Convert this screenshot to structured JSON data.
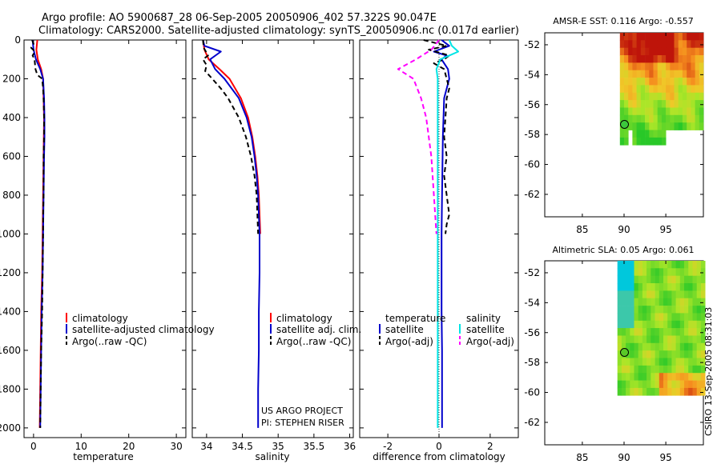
{
  "figure": {
    "title_line1": "Argo profile: AO 5900687_28 06-Sep-2005 20050906_402 57.322S 90.047E",
    "title_line2": "Climatology: CARS2000. Satellite-adjusted climatology: synTS_20050906.nc (0.017d earlier)",
    "credit": "CSIRO 13-Sep-2005 08:31:03",
    "project_line1": "US ARGO PROJECT",
    "project_line2": "PI: STEPHEN RISER"
  },
  "colors": {
    "climatology": "#ff0000",
    "satellite": "#0000cc",
    "argo": "#000000",
    "salinity_satellite": "#00e5e5",
    "salinity_argo": "#ff00ff"
  },
  "chart_data": [
    {
      "id": "temperature",
      "type": "line",
      "xlabel": "temperature",
      "xlim": [
        -2,
        32
      ],
      "ylim": [
        2050,
        0
      ],
      "xticks": [
        0,
        10,
        20,
        30
      ],
      "yticks": [
        0,
        200,
        400,
        600,
        800,
        1000,
        1200,
        1400,
        1600,
        1800,
        2000
      ],
      "legend": [
        "climatology",
        "satellite-adjusted climatology",
        "Argo(..raw -QC)"
      ],
      "series": [
        {
          "name": "climatology",
          "depth": [
            0,
            50,
            100,
            150,
            200,
            300,
            400,
            600,
            800,
            1000,
            1200,
            1400,
            1600,
            1800,
            2000
          ],
          "values": [
            0.8,
            0.6,
            0.9,
            1.6,
            2.0,
            2.1,
            2.2,
            2.1,
            2.0,
            1.9,
            1.8,
            1.6,
            1.5,
            1.4,
            1.3
          ]
        },
        {
          "name": "satellite-adjusted climatology",
          "depth": [
            0,
            50,
            100,
            150,
            200,
            300,
            400,
            500,
            600,
            800,
            1000,
            1200,
            1400,
            1600,
            1800,
            2000
          ],
          "values": [
            -0.2,
            0.0,
            0.5,
            1.4,
            2.0,
            2.2,
            2.3,
            2.3,
            2.2,
            2.1,
            2.0,
            1.9,
            1.7,
            1.6,
            1.5,
            1.4
          ]
        },
        {
          "name": "Argo(..raw -QC)",
          "depth": [
            0,
            20,
            40,
            60,
            80,
            100,
            150,
            180,
            200,
            250,
            300,
            400,
            500,
            600,
            700,
            800,
            900,
            1000,
            1200,
            1400,
            1600,
            1800,
            2000
          ],
          "values": [
            -0.3,
            0.0,
            -0.5,
            0.3,
            -0.2,
            0.2,
            0.4,
            0.8,
            1.8,
            2.0,
            2.1,
            2.2,
            2.2,
            2.1,
            2.1,
            2.1,
            2.0,
            2.0,
            1.9,
            1.8,
            1.6,
            1.5,
            1.4
          ]
        }
      ]
    },
    {
      "id": "salinity",
      "type": "line",
      "xlabel": "salinity",
      "xlim": [
        33.8,
        36.05
      ],
      "ylim": [
        2050,
        0
      ],
      "xticks": [
        34,
        34.5,
        35,
        35.5,
        36
      ],
      "legend": [
        "climatology",
        "satellite adj. clim.",
        "Argo(..raw -QC)"
      ],
      "series": [
        {
          "name": "climatology",
          "depth": [
            0,
            50,
            100,
            150,
            200,
            300,
            400,
            500,
            600,
            700,
            800,
            900,
            1000
          ],
          "values": [
            33.95,
            33.97,
            34.03,
            34.18,
            34.32,
            34.48,
            34.58,
            34.64,
            34.68,
            34.71,
            34.73,
            34.74,
            34.75
          ]
        },
        {
          "name": "satellite adj. clim.",
          "depth": [
            0,
            30,
            60,
            100,
            150,
            200,
            300,
            400,
            500,
            600,
            700,
            800,
            1000,
            1200,
            1400,
            1600,
            1800,
            2000
          ],
          "values": [
            33.95,
            33.97,
            34.2,
            34.05,
            34.12,
            34.25,
            34.45,
            34.56,
            34.63,
            34.67,
            34.7,
            34.72,
            34.74,
            34.74,
            34.73,
            34.73,
            34.72,
            34.72
          ]
        },
        {
          "name": "Argo(..raw -QC)",
          "depth": [
            0,
            40,
            80,
            100,
            130,
            160,
            200,
            250,
            300,
            400,
            500,
            600,
            700,
            800,
            900,
            1000
          ],
          "values": [
            33.95,
            33.96,
            34.02,
            33.95,
            34.0,
            33.98,
            34.08,
            34.2,
            34.3,
            34.45,
            34.55,
            34.62,
            34.67,
            34.7,
            34.71,
            34.72
          ]
        }
      ]
    },
    {
      "id": "difference",
      "type": "line",
      "xlabel": "difference from climatology",
      "xlim": [
        -3.1,
        3.1
      ],
      "ylim": [
        2050,
        0
      ],
      "xticks": [
        -2,
        0,
        2
      ],
      "legend_groups": [
        {
          "title": "temperature",
          "entries": [
            "satellite",
            "Argo(-adj)"
          ]
        },
        {
          "title": "salinity",
          "entries": [
            "satellite",
            "Argo(-adj)"
          ]
        }
      ],
      "series": [
        {
          "name": "temperature satellite",
          "depth": [
            0,
            30,
            60,
            80,
            100,
            150,
            200,
            300,
            500,
            800,
            1000,
            1200,
            1400,
            1600,
            1800,
            2000
          ],
          "values": [
            0.1,
            0.4,
            -0.2,
            0.3,
            0.1,
            0.35,
            0.4,
            0.2,
            0.15,
            0.12,
            0.1,
            0.1,
            0.1,
            0.12,
            0.12,
            0.12
          ]
        },
        {
          "name": "temperature Argo(-adj)",
          "depth": [
            0,
            30,
            50,
            80,
            100,
            120,
            150,
            200,
            250,
            300,
            400,
            500,
            600,
            700,
            800,
            900,
            950,
            1000
          ],
          "values": [
            -0.6,
            0.3,
            -0.4,
            0.4,
            0.2,
            -0.2,
            0.2,
            0.3,
            0.4,
            0.3,
            0.25,
            0.2,
            0.3,
            0.2,
            0.3,
            0.4,
            0.3,
            0.25
          ]
        },
        {
          "name": "salinity satellite",
          "depth": [
            0,
            30,
            60,
            80,
            100,
            150,
            200,
            300,
            500,
            800,
            1000,
            1200,
            1500,
            1800,
            2000
          ],
          "values": [
            0.4,
            0.5,
            0.75,
            0.4,
            0.05,
            -0.1,
            -0.05,
            -0.05,
            -0.05,
            -0.05,
            -0.05,
            -0.05,
            -0.05,
            -0.05,
            -0.05
          ]
        },
        {
          "name": "salinity Argo(-adj)",
          "depth": [
            0,
            50,
            100,
            150,
            200,
            300,
            400,
            500,
            600,
            800,
            900,
            1000
          ],
          "values": [
            0.0,
            -0.3,
            -0.9,
            -1.6,
            -1.0,
            -0.7,
            -0.5,
            -0.4,
            -0.3,
            -0.2,
            -0.15,
            -0.1
          ]
        }
      ]
    },
    {
      "id": "sst-map",
      "type": "heatmap",
      "title": "AMSR-E SST: 0.116 Argo: -0.557",
      "xticks": [
        85,
        90,
        95
      ],
      "yticks": [
        -52,
        -54,
        -56,
        -58,
        -60,
        -62
      ],
      "xlim": [
        80.5,
        99.5
      ],
      "ylim": [
        -63.5,
        -51.2
      ],
      "marker": {
        "lon": 90.047,
        "lat": -57.322
      }
    },
    {
      "id": "sla-map",
      "type": "heatmap",
      "title": "Altimetric SLA: 0.05 Argo: 0.061",
      "xticks": [
        85,
        90,
        95
      ],
      "yticks": [
        -52,
        -54,
        -56,
        -58,
        -60,
        -62
      ],
      "xlim": [
        80.5,
        99.5
      ],
      "ylim": [
        -63.5,
        -51.2
      ],
      "marker": {
        "lon": 90.047,
        "lat": -57.322
      }
    }
  ]
}
